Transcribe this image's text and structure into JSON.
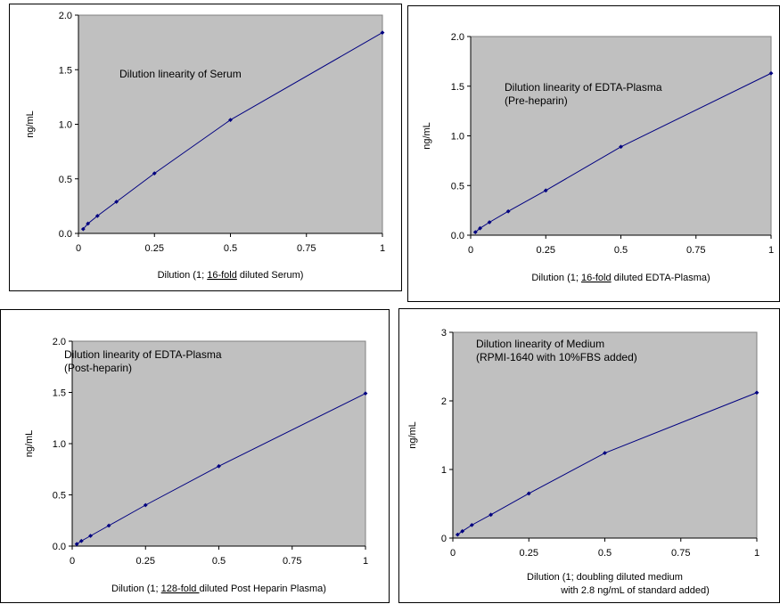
{
  "chart_data": [
    {
      "type": "line",
      "annotation": [
        "Dilution linearity of Serum"
      ],
      "xlabel": {
        "before": "Dilution (1; ",
        "underlined": "16-fold",
        "after": " diluted Serum)"
      },
      "ylabel": "ng/mL",
      "xlim": [
        0,
        1
      ],
      "ylim": [
        0,
        2.0
      ],
      "xticks": [
        0,
        0.25,
        0.5,
        0.75,
        1
      ],
      "xtick_labels": [
        "0",
        "0.25",
        "0.5",
        "0.75",
        "1"
      ],
      "yticks": [
        0,
        0.5,
        1.0,
        1.5,
        2.0
      ],
      "ytick_labels": [
        "0.0",
        "0.5",
        "1.0",
        "1.5",
        "2.0"
      ],
      "grid": false,
      "plot_background": "#c0c0c0",
      "line_color": "#000080",
      "series": [
        {
          "x": [
            0.0156,
            0.0313,
            0.0625,
            0.125,
            0.25,
            0.5,
            1.0
          ],
          "y": [
            0.04,
            0.09,
            0.16,
            0.29,
            0.55,
            1.04,
            1.84
          ]
        }
      ]
    },
    {
      "type": "line",
      "annotation": [
        "Dilution linearity of EDTA-Plasma",
        "(Pre-heparin)"
      ],
      "xlabel": {
        "before": "Dilution (1; ",
        "underlined": "16-fold",
        "after": " diluted EDTA-Plasma)"
      },
      "ylabel": "ng/mL",
      "xlim": [
        0,
        1
      ],
      "ylim": [
        0,
        2.0
      ],
      "xticks": [
        0,
        0.25,
        0.5,
        0.75,
        1
      ],
      "xtick_labels": [
        "0",
        "0.25",
        "0.5",
        "0.75",
        "1"
      ],
      "yticks": [
        0,
        0.5,
        1.0,
        1.5,
        2.0
      ],
      "ytick_labels": [
        "0.0",
        "0.5",
        "1.0",
        "1.5",
        "2.0"
      ],
      "grid": false,
      "plot_background": "#c0c0c0",
      "line_color": "#000080",
      "series": [
        {
          "x": [
            0.0156,
            0.0313,
            0.0625,
            0.125,
            0.25,
            0.5,
            1.0
          ],
          "y": [
            0.03,
            0.07,
            0.13,
            0.24,
            0.45,
            0.89,
            1.63
          ]
        }
      ]
    },
    {
      "type": "line",
      "annotation": [
        "Dilution linearity of EDTA-Plasma",
        "(Post-heparin)"
      ],
      "xlabel": {
        "before": "Dilution (1; ",
        "underlined": "128-fold ",
        "after": "diluted Post Heparin Plasma)"
      },
      "ylabel": "ng/mL",
      "xlim": [
        0,
        1
      ],
      "ylim": [
        0,
        2.0
      ],
      "xticks": [
        0,
        0.25,
        0.5,
        0.75,
        1
      ],
      "xtick_labels": [
        "0",
        "0.25",
        "0.5",
        "0.75",
        "1"
      ],
      "yticks": [
        0,
        0.5,
        1.0,
        1.5,
        2.0
      ],
      "ytick_labels": [
        "0.0",
        "0.5",
        "1.0",
        "1.5",
        "2.0"
      ],
      "grid": false,
      "plot_background": "#c0c0c0",
      "line_color": "#000080",
      "series": [
        {
          "x": [
            0.0156,
            0.0313,
            0.0625,
            0.125,
            0.25,
            0.5,
            1.0
          ],
          "y": [
            0.02,
            0.05,
            0.1,
            0.2,
            0.4,
            0.78,
            1.49
          ]
        }
      ]
    },
    {
      "type": "line",
      "annotation": [
        "Dilution linearity of Medium",
        "(RPMI-1640 with 10%FBS added)"
      ],
      "xlabel_lines": [
        "Dilution (1; doubling diluted medium",
        "with 2.8 ng/mL of standard added)"
      ],
      "ylabel": "ng/mL",
      "xlim": [
        0,
        1
      ],
      "ylim": [
        0,
        3
      ],
      "xticks": [
        0,
        0.25,
        0.5,
        0.75,
        1
      ],
      "xtick_labels": [
        "0",
        "0.25",
        "0.5",
        "0.75",
        "1"
      ],
      "yticks": [
        0,
        1,
        2,
        3
      ],
      "ytick_labels": [
        "0",
        "1",
        "2",
        "3"
      ],
      "grid": false,
      "plot_background": "#c0c0c0",
      "line_color": "#000080",
      "series": [
        {
          "x": [
            0.0156,
            0.0313,
            0.0625,
            0.125,
            0.25,
            0.5,
            1.0
          ],
          "y": [
            0.05,
            0.1,
            0.19,
            0.34,
            0.65,
            1.24,
            2.12
          ]
        }
      ]
    }
  ]
}
